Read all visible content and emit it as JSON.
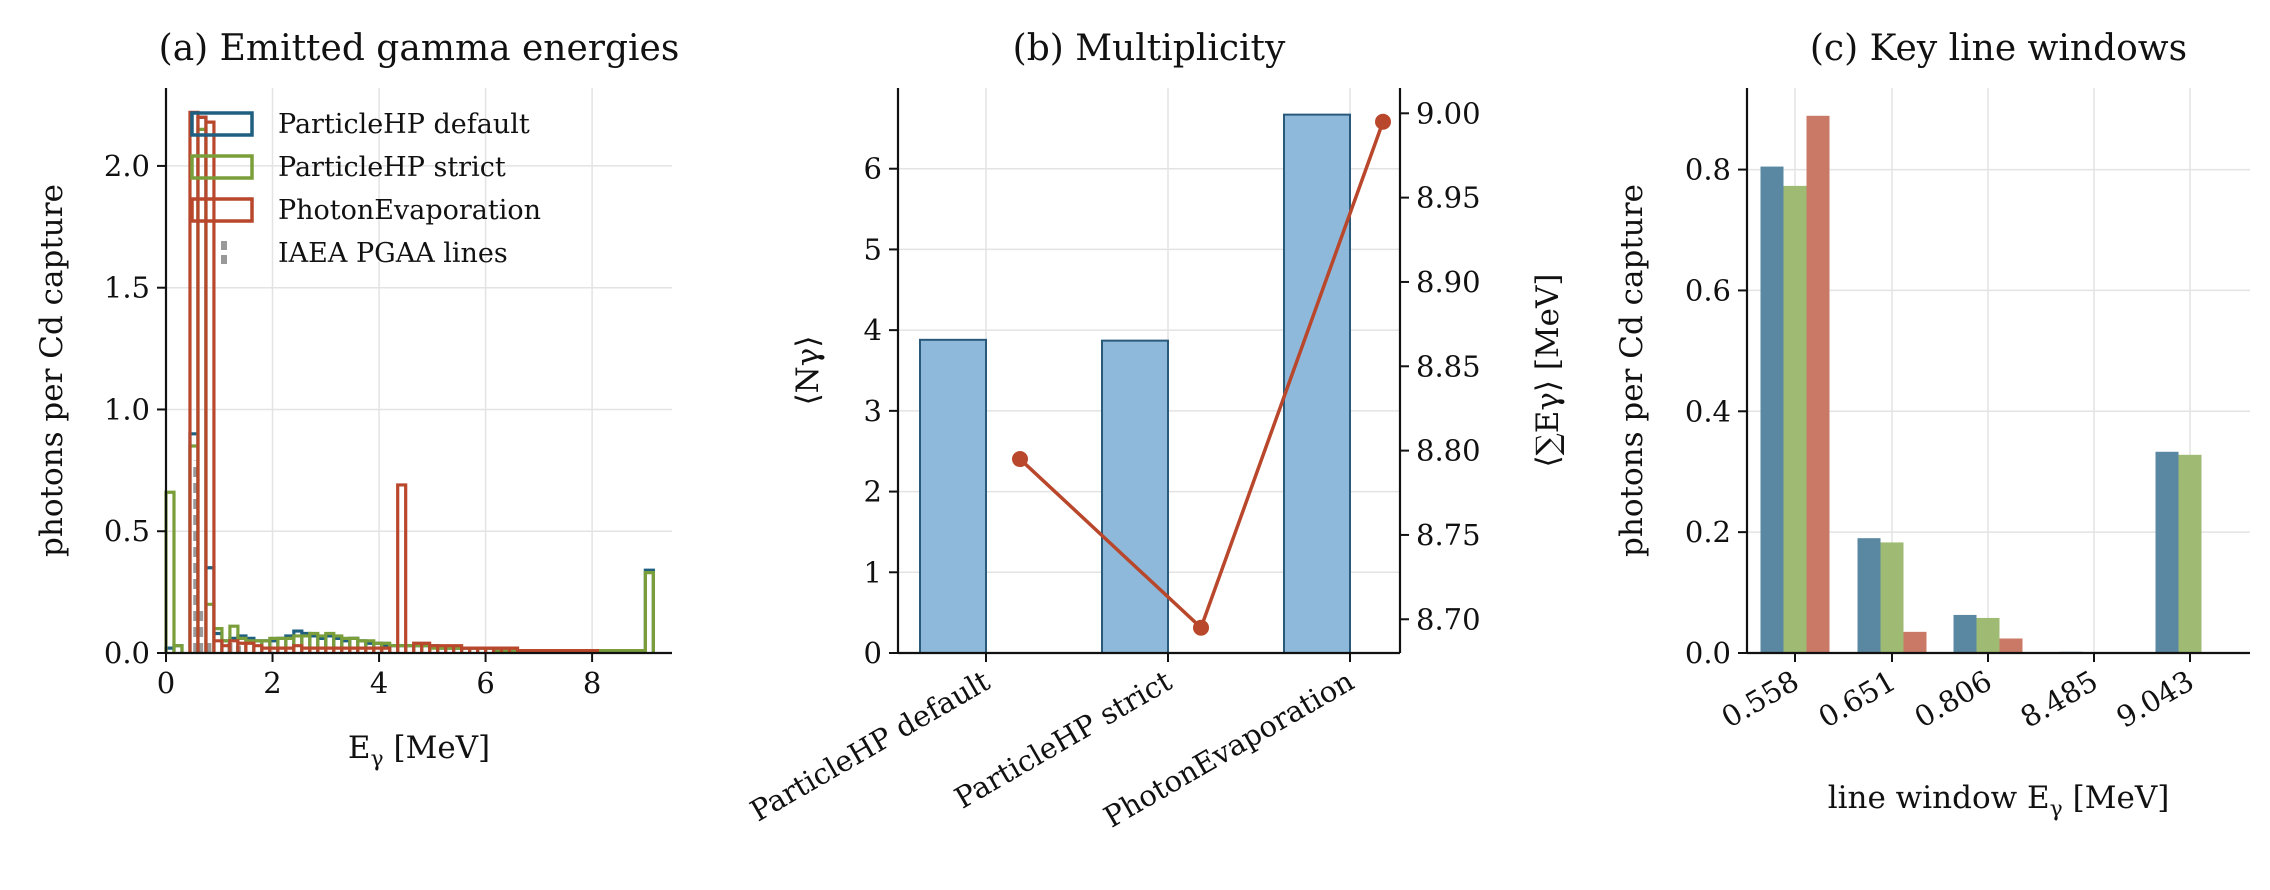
{
  "colors": {
    "default": "#1f5f80",
    "strict": "#7a9e3a",
    "photon": "#b9472c",
    "iaea": "#999999",
    "bar_fill": "#8fb9da",
    "bar_edge": "#2a5a7a",
    "bar_default": "#5a88a3",
    "bar_strict": "#9fba73",
    "bar_photon": "#c97966",
    "grid": "#e3e3e3"
  },
  "chart_data": [
    {
      "type": "histogram",
      "title": "(a) Emitted gamma energies",
      "xlabel": "Eγ [MeV]",
      "xlabel_main": "E",
      "xlabel_sub": "γ",
      "xlabel_rest": " [MeV]",
      "ylabel": "photons per Cd capture",
      "xlim": [
        0,
        9.5
      ],
      "ylim": [
        0,
        2.32
      ],
      "xticks": [
        0,
        2,
        4,
        6,
        8
      ],
      "xtick_labels": [
        "0",
        "2",
        "4",
        "6",
        "8"
      ],
      "yticks": [
        0,
        0.5,
        1.0,
        1.5,
        2.0
      ],
      "ytick_labels": [
        "0.0",
        "0.5",
        "1.0",
        "1.5",
        "2.0"
      ],
      "grid": true,
      "legend_placement": "upper-left",
      "legend": [
        "ParticleHP default",
        "ParticleHP strict",
        "PhotonEvaporation",
        "IAEA PGAA lines"
      ],
      "bin_width": 0.15,
      "series": [
        {
          "name": "ParticleHP default",
          "color_key": "default",
          "bins": [
            [
              0.0,
              0.02
            ],
            [
              0.15,
              0.03
            ],
            [
              0.45,
              0.9
            ],
            [
              0.6,
              2.2
            ],
            [
              0.75,
              0.35
            ],
            [
              0.9,
              0.08
            ],
            [
              1.05,
              0.05
            ],
            [
              1.2,
              0.06
            ],
            [
              1.35,
              0.07
            ],
            [
              1.5,
              0.06
            ],
            [
              1.65,
              0.05
            ],
            [
              1.8,
              0.05
            ],
            [
              1.95,
              0.05
            ],
            [
              2.1,
              0.06
            ],
            [
              2.25,
              0.07
            ],
            [
              2.4,
              0.09
            ],
            [
              2.55,
              0.08
            ],
            [
              2.7,
              0.07
            ],
            [
              2.85,
              0.06
            ],
            [
              3.0,
              0.07
            ],
            [
              3.15,
              0.06
            ],
            [
              3.3,
              0.05
            ],
            [
              3.45,
              0.06
            ],
            [
              3.6,
              0.05
            ],
            [
              3.75,
              0.04
            ],
            [
              3.9,
              0.04
            ],
            [
              4.05,
              0.03
            ],
            [
              4.2,
              0.03
            ],
            [
              4.35,
              0.03
            ],
            [
              4.5,
              0.03
            ],
            [
              4.65,
              0.03
            ],
            [
              4.8,
              0.03
            ],
            [
              4.95,
              0.03
            ],
            [
              5.1,
              0.02
            ],
            [
              5.25,
              0.02
            ],
            [
              5.4,
              0.02
            ],
            [
              5.55,
              0.02
            ],
            [
              5.7,
              0.02
            ],
            [
              5.85,
              0.02
            ],
            [
              6.0,
              0.02
            ],
            [
              6.15,
              0.02
            ],
            [
              6.3,
              0.01
            ],
            [
              6.45,
              0.01
            ],
            [
              6.6,
              0.01
            ],
            [
              6.75,
              0.01
            ],
            [
              6.9,
              0.01
            ],
            [
              7.05,
              0.01
            ],
            [
              7.2,
              0.01
            ],
            [
              7.35,
              0.01
            ],
            [
              7.5,
              0.01
            ],
            [
              7.65,
              0.01
            ],
            [
              7.8,
              0.01
            ],
            [
              7.95,
              0.01
            ],
            [
              8.1,
              0.01
            ],
            [
              8.25,
              0.01
            ],
            [
              8.4,
              0.01
            ],
            [
              8.55,
              0.01
            ],
            [
              8.7,
              0.01
            ],
            [
              8.85,
              0.01
            ],
            [
              9.0,
              0.34
            ]
          ]
        },
        {
          "name": "ParticleHP strict",
          "color_key": "strict",
          "bins": [
            [
              0.0,
              0.66
            ],
            [
              0.15,
              0.03
            ],
            [
              0.45,
              0.85
            ],
            [
              0.6,
              2.15
            ],
            [
              0.75,
              0.2
            ],
            [
              0.9,
              0.1
            ],
            [
              1.05,
              0.05
            ],
            [
              1.2,
              0.11
            ],
            [
              1.35,
              0.06
            ],
            [
              1.5,
              0.05
            ],
            [
              1.65,
              0.05
            ],
            [
              1.8,
              0.05
            ],
            [
              1.95,
              0.06
            ],
            [
              2.1,
              0.06
            ],
            [
              2.25,
              0.06
            ],
            [
              2.4,
              0.07
            ],
            [
              2.55,
              0.07
            ],
            [
              2.7,
              0.08
            ],
            [
              2.85,
              0.07
            ],
            [
              3.0,
              0.08
            ],
            [
              3.15,
              0.07
            ],
            [
              3.3,
              0.06
            ],
            [
              3.45,
              0.06
            ],
            [
              3.6,
              0.05
            ],
            [
              3.75,
              0.05
            ],
            [
              3.9,
              0.04
            ],
            [
              4.05,
              0.04
            ],
            [
              4.2,
              0.03
            ],
            [
              4.35,
              0.03
            ],
            [
              4.5,
              0.03
            ],
            [
              4.65,
              0.03
            ],
            [
              4.8,
              0.03
            ],
            [
              4.95,
              0.02
            ],
            [
              5.1,
              0.02
            ],
            [
              5.25,
              0.02
            ],
            [
              5.4,
              0.02
            ],
            [
              5.55,
              0.02
            ],
            [
              5.7,
              0.02
            ],
            [
              5.85,
              0.02
            ],
            [
              6.0,
              0.02
            ],
            [
              6.15,
              0.01
            ],
            [
              6.3,
              0.01
            ],
            [
              6.45,
              0.01
            ],
            [
              6.6,
              0.01
            ],
            [
              6.75,
              0.01
            ],
            [
              6.9,
              0.01
            ],
            [
              7.05,
              0.01
            ],
            [
              7.2,
              0.01
            ],
            [
              7.35,
              0.01
            ],
            [
              7.5,
              0.01
            ],
            [
              7.65,
              0.01
            ],
            [
              7.8,
              0.01
            ],
            [
              7.95,
              0.01
            ],
            [
              8.1,
              0.01
            ],
            [
              8.25,
              0.01
            ],
            [
              8.4,
              0.01
            ],
            [
              8.55,
              0.01
            ],
            [
              8.7,
              0.01
            ],
            [
              8.85,
              0.01
            ],
            [
              9.0,
              0.33
            ]
          ]
        },
        {
          "name": "PhotonEvaporation",
          "color_key": "photon",
          "bins": [
            [
              0.45,
              2.22
            ],
            [
              0.6,
              2.2
            ],
            [
              0.75,
              2.18
            ],
            [
              0.9,
              0.05
            ],
            [
              1.05,
              0.03
            ],
            [
              1.2,
              0.05
            ],
            [
              1.35,
              0.04
            ],
            [
              1.5,
              0.04
            ],
            [
              1.65,
              0.03
            ],
            [
              1.8,
              0.02
            ],
            [
              1.95,
              0.02
            ],
            [
              2.1,
              0.02
            ],
            [
              2.25,
              0.02
            ],
            [
              2.4,
              0.03
            ],
            [
              2.55,
              0.02
            ],
            [
              2.7,
              0.02
            ],
            [
              2.85,
              0.02
            ],
            [
              3.0,
              0.02
            ],
            [
              3.15,
              0.02
            ],
            [
              3.3,
              0.02
            ],
            [
              3.45,
              0.02
            ],
            [
              3.6,
              0.02
            ],
            [
              3.75,
              0.02
            ],
            [
              3.9,
              0.02
            ],
            [
              4.05,
              0.02
            ],
            [
              4.35,
              0.69
            ],
            [
              4.65,
              0.04
            ],
            [
              4.8,
              0.04
            ],
            [
              4.95,
              0.03
            ],
            [
              5.1,
              0.03
            ],
            [
              5.25,
              0.03
            ],
            [
              5.4,
              0.03
            ],
            [
              5.55,
              0.02
            ],
            [
              5.7,
              0.02
            ],
            [
              5.85,
              0.02
            ],
            [
              6.0,
              0.02
            ],
            [
              6.15,
              0.02
            ],
            [
              6.3,
              0.02
            ],
            [
              6.45,
              0.02
            ],
            [
              6.6,
              0.01
            ],
            [
              6.75,
              0.01
            ],
            [
              6.9,
              0.01
            ],
            [
              7.05,
              0.01
            ],
            [
              7.2,
              0.01
            ],
            [
              7.35,
              0.01
            ],
            [
              7.5,
              0.01
            ],
            [
              7.65,
              0.01
            ],
            [
              7.8,
              0.01
            ],
            [
              7.95,
              0.01
            ]
          ]
        }
      ],
      "iaea_lines": [
        {
          "x": 0.558,
          "y": 0.79
        },
        {
          "x": 0.651,
          "y": 0.18
        },
        {
          "x": 0.806,
          "y": 0.06
        },
        {
          "x": 1.2,
          "y": 0.05
        },
        {
          "x": 1.36,
          "y": 0.03
        }
      ]
    },
    {
      "type": "bar+line",
      "title": "(b) Multiplicity",
      "ylabel_left": "⟨Nγ⟩",
      "ylabel_right": "⟨∑Eγ⟩ [MeV]",
      "categories": [
        "ParticleHP default",
        "ParticleHP strict",
        "PhotonEvaporation"
      ],
      "bar_values": [
        3.88,
        3.87,
        6.67
      ],
      "line_values": [
        8.795,
        8.695,
        8.995
      ],
      "ylim_left": [
        0,
        7.0
      ],
      "ylim_right": [
        8.68,
        9.015
      ],
      "yticks_left": [
        0,
        1,
        2,
        3,
        4,
        5,
        6
      ],
      "ytick_labels_left": [
        "0",
        "1",
        "2",
        "3",
        "4",
        "5",
        "6"
      ],
      "yticks_right": [
        8.7,
        8.75,
        8.8,
        8.85,
        8.9,
        8.95,
        9.0
      ],
      "ytick_labels_right": [
        "8.70",
        "8.75",
        "8.80",
        "8.85",
        "8.90",
        "8.95",
        "9.00"
      ],
      "grid": true
    },
    {
      "type": "bar",
      "title": "(c) Key line windows",
      "xlabel": "line window Eγ [MeV]",
      "xlabel_main": "line window E",
      "xlabel_sub": "γ",
      "xlabel_rest": " [MeV]",
      "ylabel": "photons per Cd capture",
      "categories": [
        "0.558",
        "0.651",
        "0.806",
        "8.485",
        "9.043"
      ],
      "ylim": [
        0,
        0.935
      ],
      "yticks": [
        0,
        0.2,
        0.4,
        0.6,
        0.8
      ],
      "ytick_labels": [
        "0.0",
        "0.2",
        "0.4",
        "0.6",
        "0.8"
      ],
      "grid": true,
      "series": [
        {
          "name": "ParticleHP default",
          "color_key": "bar_default",
          "values": [
            0.805,
            0.19,
            0.063,
            0.002,
            0.333
          ]
        },
        {
          "name": "ParticleHP strict",
          "color_key": "bar_strict",
          "values": [
            0.773,
            0.183,
            0.058,
            0.001,
            0.328
          ]
        },
        {
          "name": "PhotonEvaporation",
          "color_key": "bar_photon",
          "values": [
            0.889,
            0.035,
            0.024,
            0.0,
            0.0
          ]
        }
      ]
    }
  ]
}
